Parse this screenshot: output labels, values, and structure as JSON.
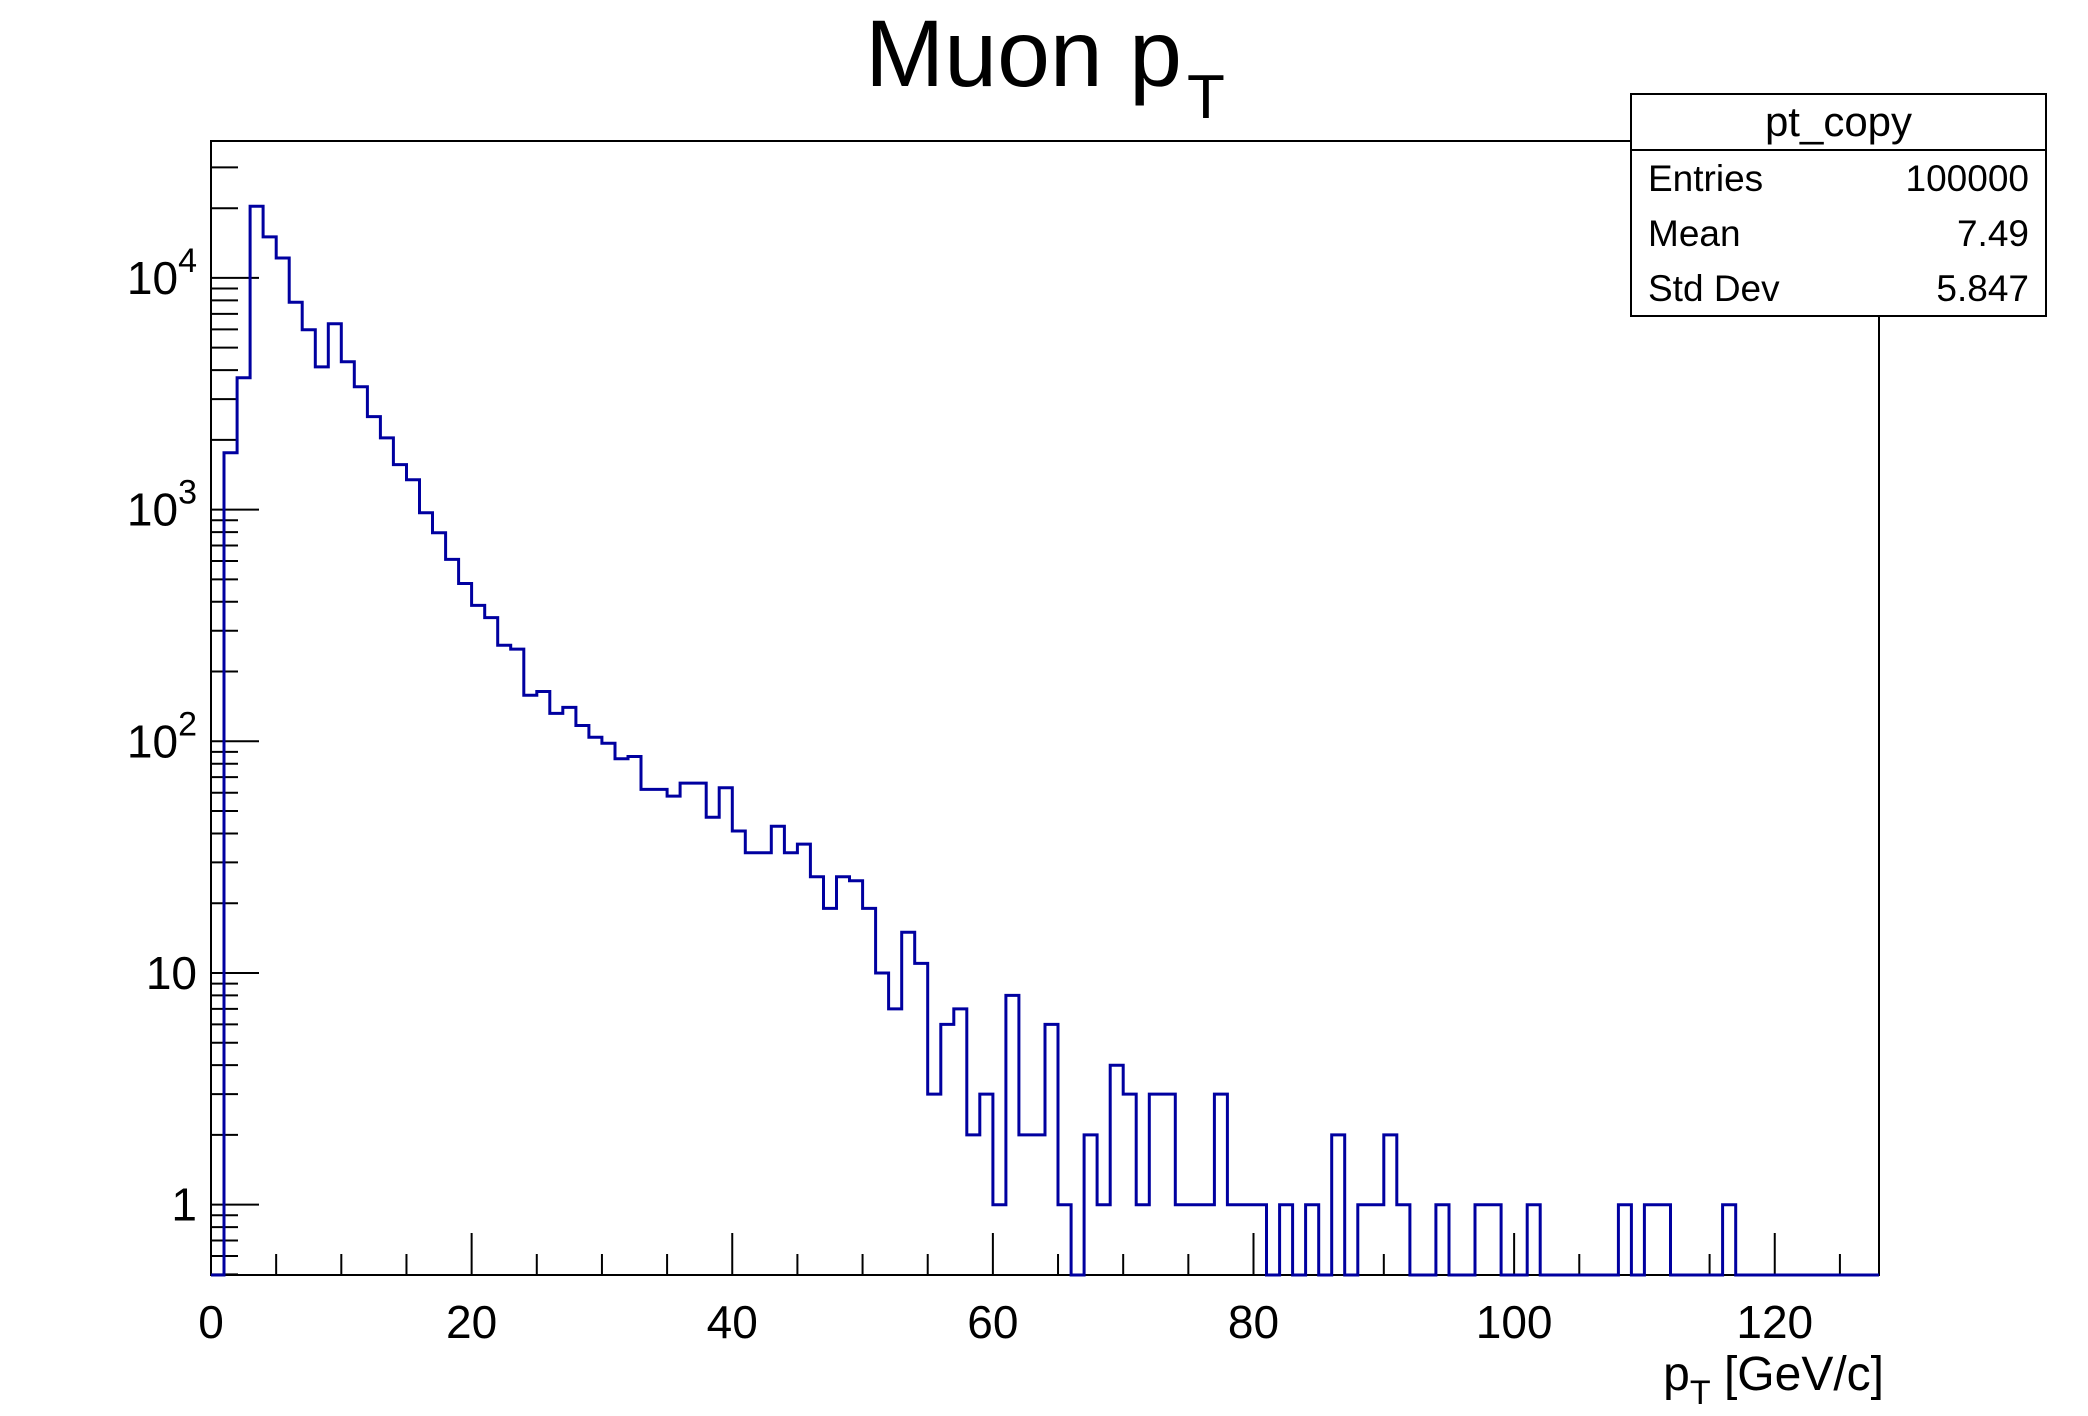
{
  "header": {
    "title_main": "Muon p",
    "title_sub": "T"
  },
  "stats_box": {
    "title": "pt_copy",
    "rows": [
      {
        "label": "Entries",
        "value": "100000"
      },
      {
        "label": "Mean",
        "value": "7.49"
      },
      {
        "label": "Std Dev",
        "value": "5.847"
      }
    ]
  },
  "chart_data": {
    "type": "bar",
    "style": "root-step-histogram",
    "title": "Muon p_T",
    "xlabel": "p_T [GeV/c]",
    "ylabel": "",
    "grid": false,
    "legend": "none",
    "line_color": "#0000a0",
    "frame_color": "#000000",
    "x_axis": {
      "min": 0,
      "max": 128,
      "bin_width": 1,
      "major_ticks": [
        0,
        20,
        40,
        60,
        80,
        100,
        120
      ],
      "minor_tick_step": 5,
      "title_main": "p",
      "title_sub": "T",
      "title_rest": " [GeV/c]"
    },
    "y_axis": {
      "scale": "log",
      "min": 0.497,
      "max": 39000,
      "ticks": [
        {
          "label": "1",
          "exp": "",
          "value": 1
        },
        {
          "label": "10",
          "exp": "",
          "value": 10
        },
        {
          "label": "10",
          "exp": "2",
          "value": 100
        },
        {
          "label": "10",
          "exp": "3",
          "value": 1000
        },
        {
          "label": "10",
          "exp": "4",
          "value": 10000
        }
      ]
    },
    "bins": [
      0,
      1760,
      3710,
      20400,
      15030,
      12190,
      7850,
      5970,
      4130,
      6340,
      4350,
      3390,
      2520,
      2040,
      1565,
      1345,
      970,
      795,
      610,
      480,
      386,
      342,
      260,
      250,
      158,
      164,
      132,
      140,
      117,
      104,
      98,
      84,
      86,
      62,
      62,
      58,
      66,
      66,
      47,
      63,
      41,
      33,
      33,
      43,
      33,
      36,
      26,
      19,
      26,
      25,
      19,
      10,
      7,
      15,
      11,
      3,
      6,
      7,
      2,
      3,
      1,
      8,
      2,
      2,
      6,
      1,
      0,
      2,
      1,
      4,
      3,
      1,
      3,
      3,
      1,
      1,
      1,
      3,
      1,
      1,
      1,
      0,
      1,
      0,
      1,
      0,
      2,
      0,
      1,
      1,
      2,
      1,
      0,
      0,
      1,
      0,
      0,
      1,
      1,
      0,
      0,
      1,
      0,
      0,
      0,
      0,
      0,
      0,
      1,
      0,
      1,
      1,
      0,
      0,
      0,
      0,
      1,
      0,
      0,
      0,
      0,
      0,
      0,
      0,
      0,
      0,
      0,
      0
    ]
  }
}
